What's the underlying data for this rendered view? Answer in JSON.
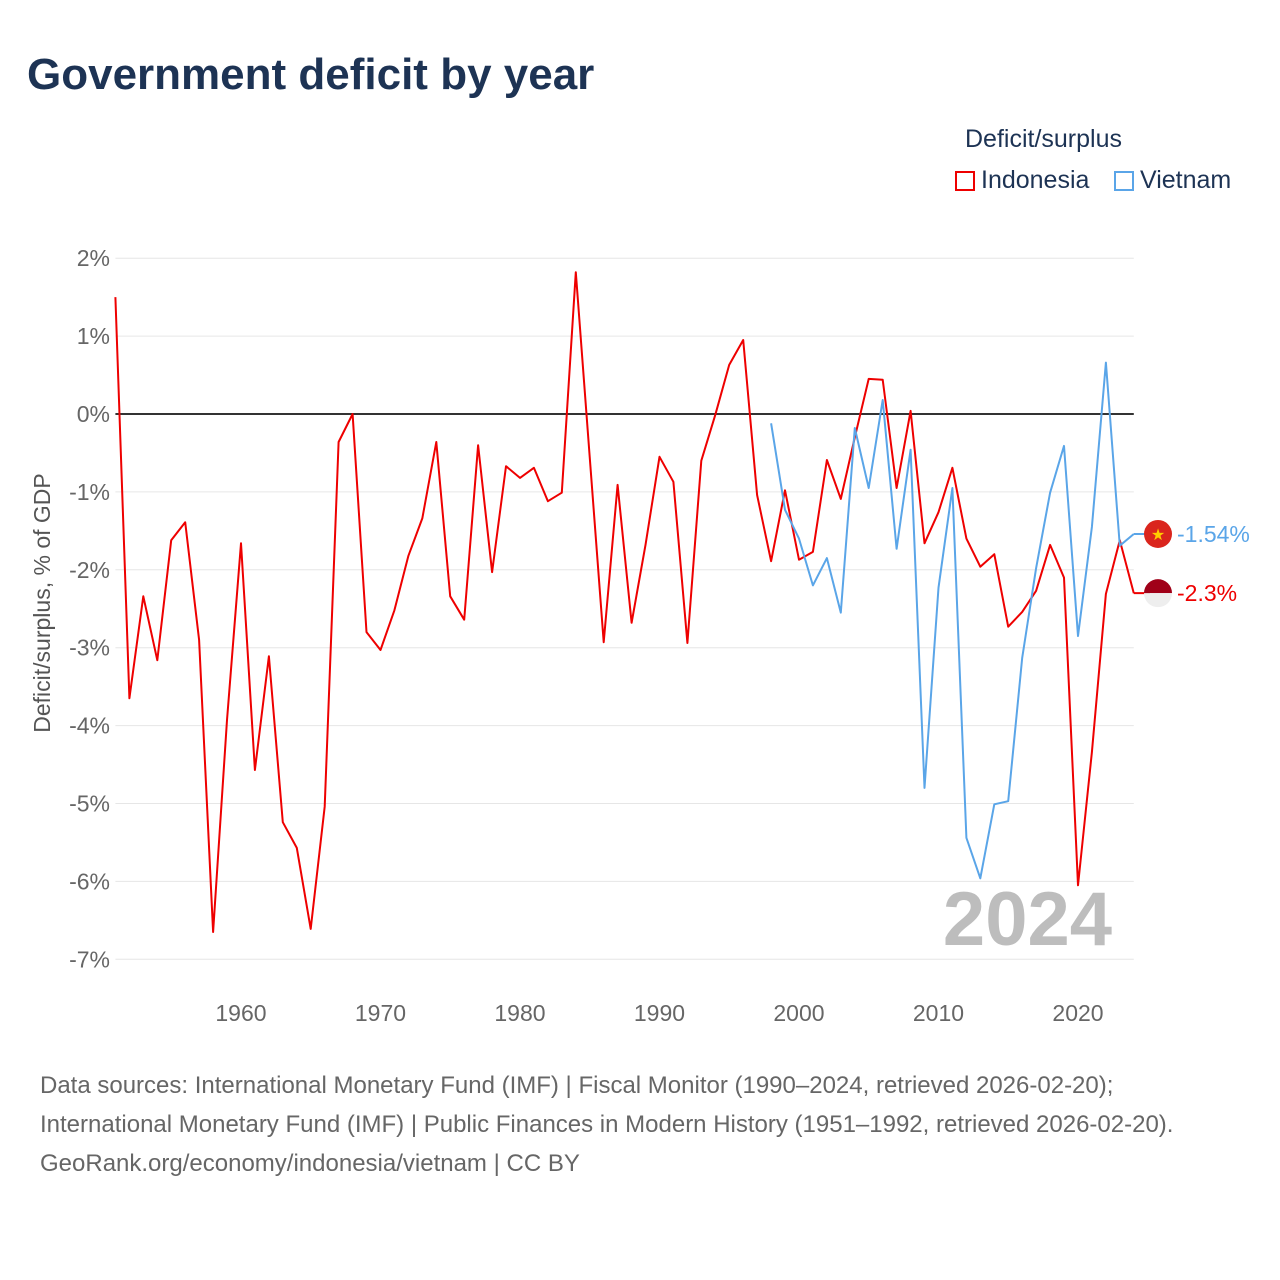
{
  "chart_data": {
    "type": "line",
    "title": "Government deficit by year",
    "ylabel": "Deficit/surplus, % of GDP",
    "xlabel": "",
    "xlim": [
      1951,
      2024
    ],
    "ylim": [
      -7,
      2
    ],
    "yticks": [
      2,
      1,
      0,
      -1,
      -2,
      -3,
      -4,
      -5,
      -6,
      -7
    ],
    "ytick_labels": [
      "2%",
      "1%",
      "0%",
      "-1%",
      "-2%",
      "-3%",
      "-4%",
      "-5%",
      "-6%",
      "-7%"
    ],
    "xticks": [
      1960,
      1970,
      1980,
      1990,
      2000,
      2010,
      2020
    ],
    "xtick_labels": [
      "1960",
      "1970",
      "1980",
      "1990",
      "2000",
      "2010",
      "2020"
    ],
    "grid": true,
    "legend_title": "Deficit/surplus",
    "legend_position": "top-right",
    "year_label": "2024",
    "series": [
      {
        "name": "Indonesia",
        "color": "#ee0000",
        "end_label": "-2.3%",
        "start_year": 1951,
        "values": [
          1.5,
          -3.65,
          -2.34,
          -3.16,
          -1.62,
          -1.39,
          -2.9,
          -6.65,
          -3.93,
          -1.66,
          -4.57,
          -3.11,
          -5.24,
          -5.57,
          -6.61,
          -5.04,
          -0.36,
          0.0,
          -2.8,
          -3.03,
          -2.52,
          -1.82,
          -1.34,
          -0.36,
          -2.34,
          -2.64,
          -0.4,
          -2.03,
          -0.67,
          -0.82,
          -0.69,
          -1.12,
          -1.01,
          1.82,
          -0.55,
          -2.93,
          -0.91,
          -2.68,
          -1.68,
          -0.55,
          -0.87,
          -2.94,
          -0.6,
          -0.01,
          0.63,
          0.95,
          -1.04,
          -1.89,
          -0.98,
          -1.87,
          -1.77,
          -0.59,
          -1.09,
          -0.3,
          0.45,
          0.44,
          -0.95,
          0.04,
          -1.66,
          -1.26,
          -0.69,
          -1.6,
          -1.96,
          -1.8,
          -2.73,
          -2.54,
          -2.27,
          -1.68,
          -2.1,
          -6.05,
          -4.34,
          -2.31,
          -1.62,
          -2.3
        ]
      },
      {
        "name": "Vietnam",
        "color": "#5aa5e8",
        "end_label": "-1.54%",
        "start_year": 1998,
        "values": [
          -0.12,
          -1.23,
          -1.6,
          -2.2,
          -1.85,
          -2.55,
          -0.18,
          -0.95,
          0.18,
          -1.73,
          -0.46,
          -4.8,
          -2.23,
          -0.95,
          -5.44,
          -5.96,
          -5.01,
          -4.97,
          -3.13,
          -1.98,
          -1.01,
          -0.41,
          -2.85,
          -1.45,
          0.66,
          -1.69,
          -1.54
        ]
      }
    ]
  },
  "footer": {
    "sources": "Data sources: International Monetary Fund (IMF) | Fiscal Monitor (1990–2024, retrieved 2026-02-20); International Monetary Fund (IMF) | Public Finances in Modern History (1951–1992, retrieved 2026-02-20).",
    "credit": "GeoRank.org/economy/indonesia/vietnam | CC BY"
  }
}
